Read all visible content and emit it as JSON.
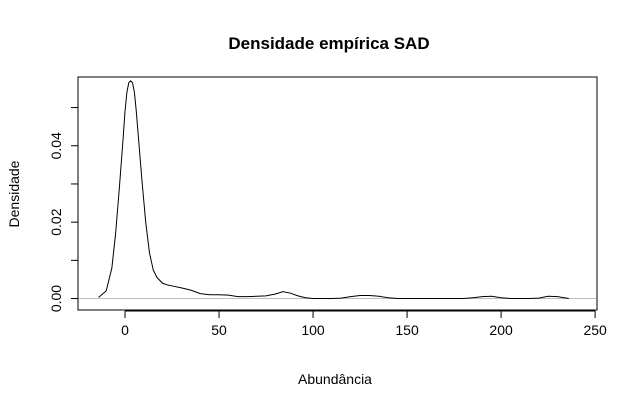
{
  "chart_data": {
    "type": "line",
    "title": "Densidade empírica SAD",
    "xlabel": "Abundância",
    "ylabel": "Densidade",
    "xlim": [
      -25,
      251
    ],
    "ylim": [
      -0.003,
      0.058
    ],
    "x_ticks": [
      0,
      50,
      100,
      150,
      200,
      250
    ],
    "x_tick_labels": [
      "0",
      "50",
      "100",
      "150",
      "200",
      "250"
    ],
    "y_ticks": [
      0.0,
      0.01,
      0.02,
      0.03,
      0.04,
      0.05
    ],
    "y_tick_labels": [
      "0.00",
      "",
      "0.02",
      "",
      "0.04",
      ""
    ],
    "baseline_y": 0,
    "grid": false,
    "line_color": "#000000",
    "baseline_color": "#bebebe",
    "series": [
      {
        "x": [
          -14,
          -10,
          -7,
          -5,
          -3,
          -1,
          0,
          1,
          2,
          3,
          4,
          5,
          6,
          7,
          9,
          11,
          13,
          15,
          17,
          20,
          23,
          26,
          30,
          35,
          40,
          45,
          50,
          55,
          60,
          65,
          70,
          75,
          80,
          84,
          88,
          92,
          96,
          100,
          105,
          110,
          115,
          120,
          125,
          130,
          135,
          140,
          145,
          150,
          160,
          170,
          180,
          185,
          190,
          195,
          200,
          205,
          210,
          215,
          220,
          225,
          230,
          236
        ],
        "y": [
          0.0003,
          0.002,
          0.008,
          0.017,
          0.029,
          0.042,
          0.049,
          0.054,
          0.0565,
          0.057,
          0.0565,
          0.054,
          0.049,
          0.043,
          0.031,
          0.02,
          0.012,
          0.0075,
          0.0055,
          0.004,
          0.0035,
          0.0032,
          0.0028,
          0.0022,
          0.0013,
          0.001,
          0.001,
          0.0009,
          0.0005,
          0.0005,
          0.0006,
          0.0007,
          0.0012,
          0.0018,
          0.0014,
          0.0007,
          0.0002,
          0.0,
          0.0,
          0.0,
          0.0001,
          0.0005,
          0.0008,
          0.0008,
          0.0006,
          0.0002,
          0.0,
          0.0,
          0.0,
          0.0,
          0.0,
          0.0002,
          0.0005,
          0.0006,
          0.0002,
          0.0,
          0.0,
          0.0,
          0.0001,
          0.0006,
          0.0005,
          0.0
        ]
      }
    ]
  }
}
